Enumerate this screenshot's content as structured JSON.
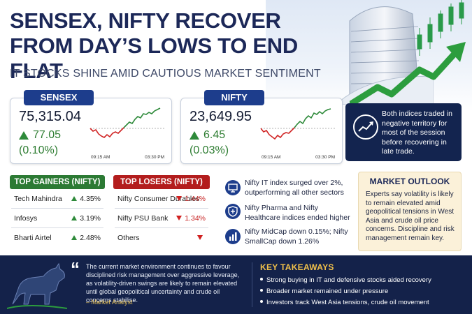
{
  "header": {
    "title": "SENSEX, NIFTY RECOVER FROM DAY’S LOWS TO END FLAT",
    "subtitle": "IT STOCKS SHINE AMID CAUTIOUS MARKET SENTIMENT"
  },
  "sensex": {
    "label": "SENSEX",
    "value": "75,315.04",
    "change": "77.05",
    "change_pct": "(0.10%)",
    "time_open": "09:15 AM",
    "time_close": "03:30 PM"
  },
  "nifty": {
    "label": "NIFTY",
    "value": "23,649.95",
    "change": "6.45",
    "change_pct": "(0.03%)",
    "time_open": "09:15 AM",
    "time_close": "03:30 PM"
  },
  "session_note": "Both indices traded in negative territory for most of the session before recovering in late trade.",
  "gainers": {
    "title": "TOP GAINERS (NIFTY)",
    "rows": [
      {
        "name": "Tech Mahindra",
        "value": "4.35%"
      },
      {
        "name": "Infosys",
        "value": "3.19%"
      },
      {
        "name": "Bharti Airtel",
        "value": "2.48%"
      }
    ]
  },
  "losers": {
    "title": "TOP LOSERS (NIFTY)",
    "rows": [
      {
        "name": "Nifty Consumer Durables",
        "value": "1.44%"
      },
      {
        "name": "Nifty PSU Bank",
        "value": "1.34%"
      },
      {
        "name": "Others",
        "value": ""
      }
    ]
  },
  "highlights": [
    "Nifty IT index surged over 2%, outperforming all other sectors",
    "Nifty Pharma and Nifty Healthcare indices ended higher",
    "Nifty MidCap down 0.15%; Nifty SmallCap down 1.26%"
  ],
  "outlook": {
    "title": "MARKET OUTLOOK",
    "body": "Experts say volatility is likely to remain elevated amid geopolitical tensions in West Asia and crude oil price concerns. Discipline and risk management remain key."
  },
  "quote": {
    "text": "The current market environment continues to favour disciplined risk management over aggressive leverage, as volatility-driven swings are likely to remain elevated until global geopolitical uncertainty and crude oil concerns stabilise.",
    "attribution": "– Market Analyst"
  },
  "takeaways": {
    "title": "KEY TAKEAWAYS",
    "items": [
      "Strong buying in IT and defensive stocks aided recovery",
      "Broader market remained under pressure",
      "Investors track West Asia tensions, crude oil movement"
    ]
  },
  "colors": {
    "navy": "#1c2858",
    "tab_blue": "#1d3d8c",
    "gain_green": "#2e7d32",
    "loss_red": "#c62020",
    "band": "#14224a",
    "gold": "#f0c04a"
  }
}
